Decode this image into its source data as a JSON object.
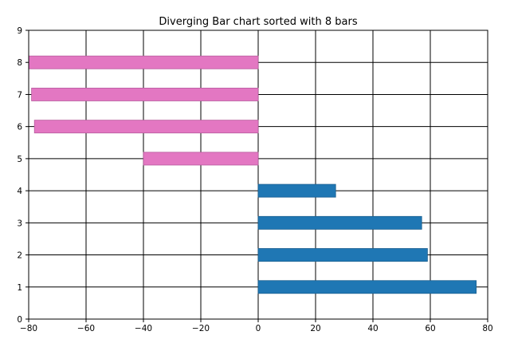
{
  "chart_data": {
    "type": "bar",
    "orientation": "horizontal",
    "title": "Diverging Bar chart sorted with 8 bars",
    "xlabel": "",
    "ylabel": "",
    "xlim": [
      -80,
      80
    ],
    "ylim": [
      0,
      9
    ],
    "xticks": [
      -80,
      -60,
      -40,
      -20,
      0,
      20,
      40,
      60,
      80
    ],
    "xtick_labels": [
      "−80",
      "−60",
      "−40",
      "−20",
      "0",
      "20",
      "40",
      "60",
      "80"
    ],
    "yticks": [
      0,
      1,
      2,
      3,
      4,
      5,
      6,
      7,
      8,
      9
    ],
    "ytick_labels": [
      "0",
      "1",
      "2",
      "3",
      "4",
      "5",
      "6",
      "7",
      "8",
      "9"
    ],
    "grid": true,
    "bars": [
      {
        "y": 1,
        "value": 76
      },
      {
        "y": 2,
        "value": 59
      },
      {
        "y": 3,
        "value": 57
      },
      {
        "y": 4,
        "value": 27
      },
      {
        "y": 5,
        "value": -40
      },
      {
        "y": 6,
        "value": -78
      },
      {
        "y": 7,
        "value": -79
      },
      {
        "y": 8,
        "value": -80
      }
    ],
    "colors": {
      "positive": "#1f77b4",
      "negative": "#e377c2",
      "grid": "#000000",
      "axis": "#000000"
    }
  }
}
